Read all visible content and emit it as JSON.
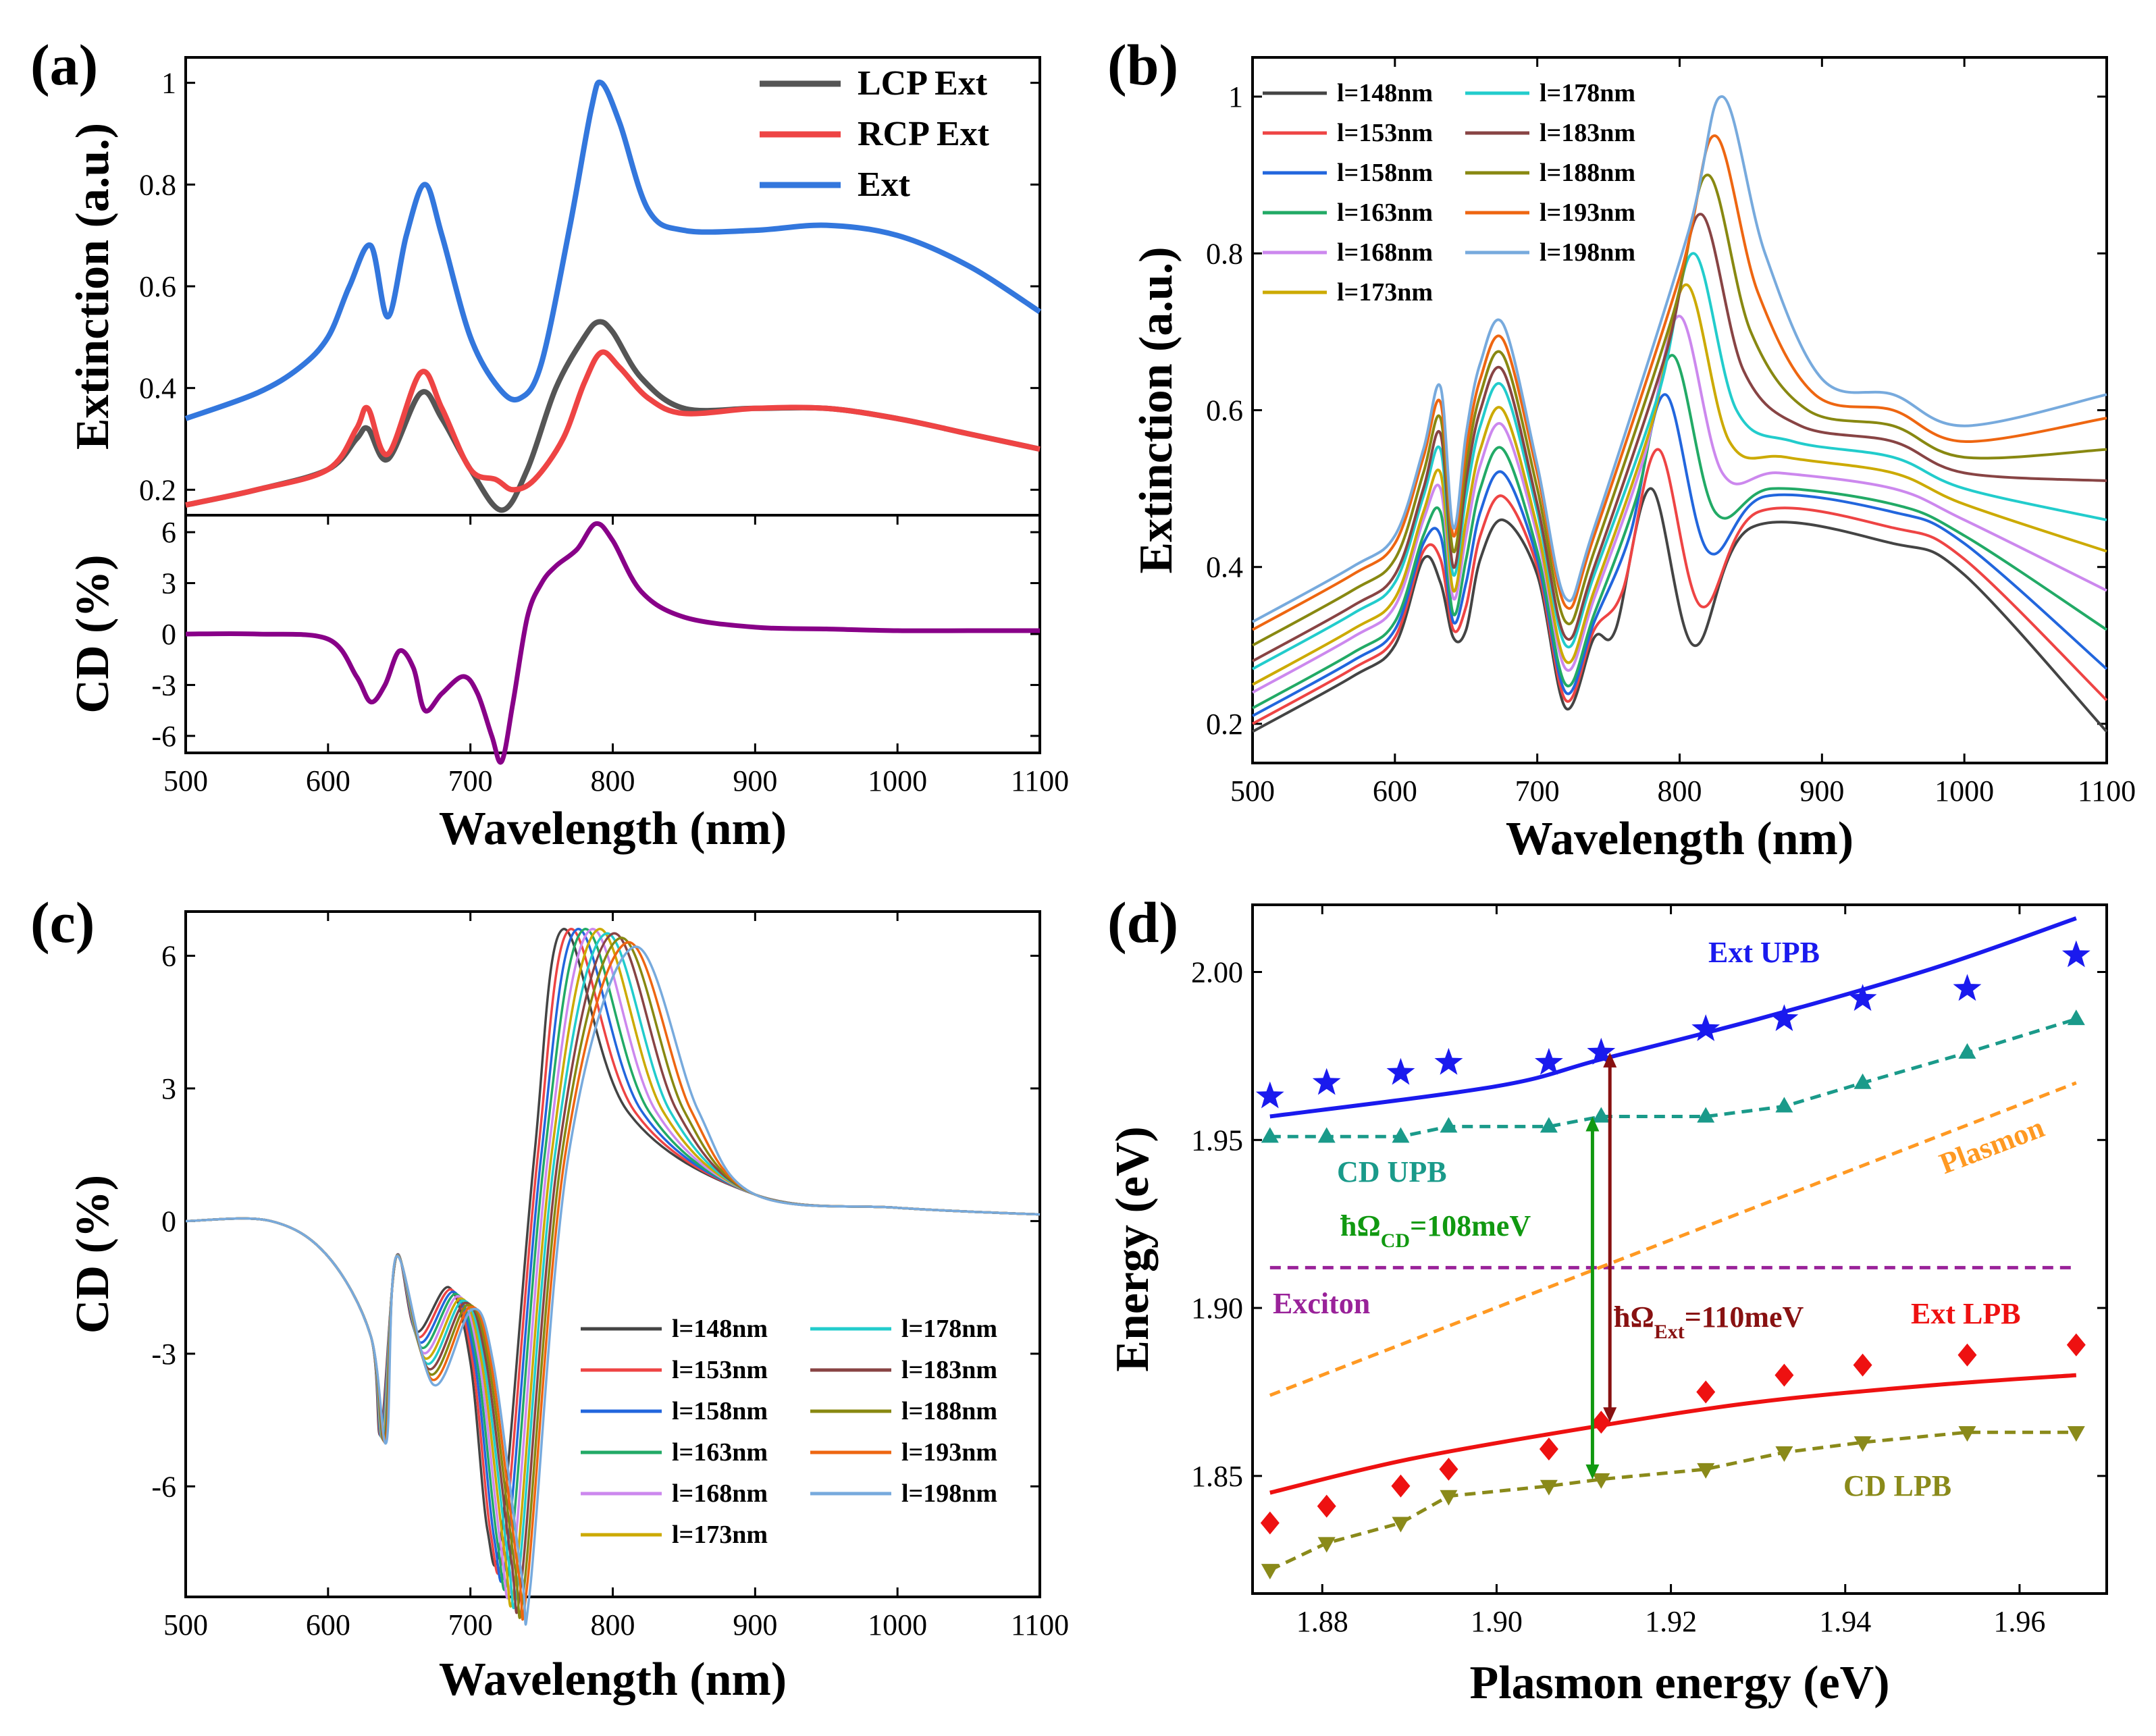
{
  "chart_data": [
    {
      "panel": "(a)",
      "type": "line",
      "xlabel": "Wavelength (nm)",
      "xlim": [
        500,
        1100
      ],
      "xticks": [
        500,
        600,
        700,
        800,
        900,
        1000,
        1100
      ],
      "top": {
        "ylabel": "Extinction (a.u.)",
        "ylim": [
          0.15,
          1.05
        ],
        "yticks": [
          0.2,
          0.4,
          0.6,
          0.8,
          1.0
        ],
        "legend_position": "top-right",
        "series": [
          {
            "name": "LCP Ext",
            "color": "#555555",
            "x": [
              500,
              550,
              600,
              620,
              628,
              642,
              665,
              680,
              700,
              722,
              740,
              760,
              780,
              790,
              800,
              820,
              850,
              900,
              950,
              1000,
              1050,
              1100
            ],
            "y": [
              0.17,
              0.2,
              0.24,
              0.3,
              0.32,
              0.26,
              0.39,
              0.34,
              0.24,
              0.16,
              0.24,
              0.4,
              0.5,
              0.53,
              0.51,
              0.42,
              0.36,
              0.36,
              0.36,
              0.34,
              0.31,
              0.28
            ]
          },
          {
            "name": "RCP Ext",
            "color": "#ee4444",
            "x": [
              500,
              550,
              600,
              620,
              628,
              642,
              665,
              680,
              700,
              718,
              730,
              745,
              765,
              780,
              792,
              805,
              825,
              850,
              900,
              950,
              1000,
              1050,
              1100
            ],
            "y": [
              0.17,
              0.2,
              0.24,
              0.32,
              0.36,
              0.27,
              0.43,
              0.36,
              0.24,
              0.22,
              0.2,
              0.22,
              0.3,
              0.41,
              0.47,
              0.44,
              0.38,
              0.35,
              0.36,
              0.36,
              0.34,
              0.31,
              0.28
            ]
          },
          {
            "name": "Ext",
            "color": "#3377dd",
            "x": [
              500,
              550,
              580,
              600,
              615,
              630,
              642,
              655,
              668,
              680,
              700,
              720,
              735,
              750,
              770,
              785,
              792,
              805,
              825,
              850,
              900,
              950,
              1000,
              1050,
              1100
            ],
            "y": [
              0.34,
              0.39,
              0.44,
              0.5,
              0.6,
              0.68,
              0.54,
              0.7,
              0.8,
              0.7,
              0.5,
              0.4,
              0.38,
              0.45,
              0.72,
              0.95,
              1.0,
              0.92,
              0.75,
              0.71,
              0.71,
              0.72,
              0.7,
              0.64,
              0.55
            ]
          }
        ]
      },
      "bottom": {
        "ylabel": "CD (%)",
        "ylim": [
          -7,
          7
        ],
        "yticks": [
          -6,
          -3,
          0,
          3,
          6
        ],
        "series": [
          {
            "name": "CD",
            "color": "#880088",
            "x": [
              500,
              550,
              600,
              620,
              630,
              640,
              650,
              660,
              668,
              680,
              695,
              705,
              715,
              722,
              730,
              740,
              750,
              760,
              775,
              788,
              800,
              820,
              850,
              900,
              950,
              1000,
              1050,
              1100
            ],
            "y": [
              0,
              0,
              -0.3,
              -2.5,
              -4,
              -3,
              -1,
              -2,
              -4.5,
              -3.5,
              -2.5,
              -3.5,
              -6,
              -7.5,
              -4,
              1,
              3,
              4,
              5,
              6.5,
              5.5,
              2.5,
              1,
              0.4,
              0.3,
              0.2,
              0.2,
              0.2
            ]
          }
        ]
      }
    },
    {
      "panel": "(b)",
      "type": "line",
      "xlabel": "Wavelength (nm)",
      "ylabel": "Extinction (a.u.)",
      "xlim": [
        500,
        1100
      ],
      "ylim": [
        0.15,
        1.05
      ],
      "xticks": [
        500,
        600,
        700,
        800,
        900,
        1000,
        1100
      ],
      "yticks": [
        0.2,
        0.4,
        0.6,
        0.8,
        1.0
      ],
      "legend_position": "top-left",
      "series": [
        {
          "name": "l=148nm",
          "color": "#444444",
          "peak_nm": 780,
          "peak": 0.5,
          "plateau": 0.45,
          "end": 0.19,
          "start": 0.19,
          "peak660": 0.46
        },
        {
          "name": "l=153nm",
          "color": "#ee4444",
          "peak_nm": 785,
          "peak": 0.55,
          "plateau": 0.47,
          "end": 0.23,
          "start": 0.2,
          "peak660": 0.49
        },
        {
          "name": "l=158nm",
          "color": "#2266dd",
          "peak_nm": 790,
          "peak": 0.62,
          "plateau": 0.49,
          "end": 0.27,
          "start": 0.21,
          "peak660": 0.52
        },
        {
          "name": "l=163nm",
          "color": "#22aa66",
          "peak_nm": 795,
          "peak": 0.67,
          "plateau": 0.5,
          "end": 0.32,
          "start": 0.22,
          "peak660": 0.55
        },
        {
          "name": "l=168nm",
          "color": "#cc88ee",
          "peak_nm": 800,
          "peak": 0.72,
          "plateau": 0.52,
          "end": 0.37,
          "start": 0.24,
          "peak660": 0.58
        },
        {
          "name": "l=173nm",
          "color": "#ccaa00",
          "peak_nm": 805,
          "peak": 0.76,
          "plateau": 0.54,
          "end": 0.42,
          "start": 0.25,
          "peak660": 0.6
        },
        {
          "name": "l=178nm",
          "color": "#22cccc",
          "peak_nm": 810,
          "peak": 0.8,
          "plateau": 0.56,
          "end": 0.46,
          "start": 0.27,
          "peak660": 0.63
        },
        {
          "name": "l=183nm",
          "color": "#884444",
          "peak_nm": 815,
          "peak": 0.85,
          "plateau": 0.58,
          "end": 0.51,
          "start": 0.28,
          "peak660": 0.65
        },
        {
          "name": "l=188nm",
          "color": "#888811",
          "peak_nm": 820,
          "peak": 0.9,
          "plateau": 0.6,
          "end": 0.55,
          "start": 0.3,
          "peak660": 0.67
        },
        {
          "name": "l=193nm",
          "color": "#ee6611",
          "peak_nm": 825,
          "peak": 0.95,
          "plateau": 0.62,
          "end": 0.59,
          "start": 0.32,
          "peak660": 0.69
        },
        {
          "name": "l=198nm",
          "color": "#77aadd",
          "peak_nm": 830,
          "peak": 1.0,
          "plateau": 0.64,
          "end": 0.62,
          "start": 0.33,
          "peak660": 0.71
        }
      ]
    },
    {
      "panel": "(c)",
      "type": "line",
      "xlabel": "Wavelength (nm)",
      "ylabel": "CD (%)",
      "xlim": [
        500,
        1100
      ],
      "ylim": [
        -8.5,
        7
      ],
      "xticks": [
        500,
        600,
        700,
        800,
        900,
        1000,
        1100
      ],
      "yticks": [
        -6,
        -3,
        0,
        3,
        6
      ],
      "legend_position": "bottom-right",
      "series": [
        {
          "name": "l=148nm",
          "color": "#444444",
          "peak_nm": 765,
          "peak": 6.6,
          "trough": -7.0
        },
        {
          "name": "l=153nm",
          "color": "#ee4444",
          "peak_nm": 770,
          "peak": 6.6,
          "trough": -7.2
        },
        {
          "name": "l=158nm",
          "color": "#2266dd",
          "peak_nm": 775,
          "peak": 6.6,
          "trough": -7.4
        },
        {
          "name": "l=163nm",
          "color": "#22aa66",
          "peak_nm": 780,
          "peak": 6.6,
          "trough": -7.6
        },
        {
          "name": "l=168nm",
          "color": "#cc88ee",
          "peak_nm": 785,
          "peak": 6.6,
          "trough": -7.8
        },
        {
          "name": "l=173nm",
          "color": "#ccaa00",
          "peak_nm": 790,
          "peak": 6.6,
          "trough": -8.0
        },
        {
          "name": "l=178nm",
          "color": "#22cccc",
          "peak_nm": 795,
          "peak": 6.5,
          "trough": -8.0
        },
        {
          "name": "l=183nm",
          "color": "#884444",
          "peak_nm": 800,
          "peak": 6.5,
          "trough": -8.1
        },
        {
          "name": "l=188nm",
          "color": "#888811",
          "peak_nm": 805,
          "peak": 6.4,
          "trough": -8.2
        },
        {
          "name": "l=193nm",
          "color": "#ee6611",
          "peak_nm": 810,
          "peak": 6.3,
          "trough": -8.2
        },
        {
          "name": "l=198nm",
          "color": "#77aadd",
          "peak_nm": 815,
          "peak": 6.2,
          "trough": -8.3
        }
      ]
    },
    {
      "panel": "(d)",
      "type": "scatter",
      "xlabel": "Plasmon energy (eV)",
      "ylabel": "Energy (eV)",
      "xlim": [
        1.872,
        1.97
      ],
      "ylim": [
        1.815,
        2.02
      ],
      "xticks": [
        1.88,
        1.9,
        1.92,
        1.94,
        1.96
      ],
      "yticks": [
        1.85,
        1.9,
        1.95,
        2.0
      ],
      "xtick_labels": [
        "1.88",
        "1.90",
        "1.92",
        "1.94",
        "1.96"
      ],
      "ytick_labels": [
        "1.85",
        "1.90",
        "1.95",
        "2.00"
      ],
      "plasmon_x": [
        1.874,
        1.8805,
        1.889,
        1.8945,
        1.906,
        1.912,
        1.924,
        1.933,
        1.942,
        1.954,
        1.9665
      ],
      "series": [
        {
          "name": "Ext UPB",
          "color": "#1a1aee",
          "marker": "star",
          "y": [
            1.963,
            1.967,
            1.97,
            1.973,
            1.973,
            1.976,
            1.983,
            1.986,
            1.992,
            1.995,
            2.005
          ]
        },
        {
          "name": "CD UPB",
          "color": "#1a9a8a",
          "marker": "triangle-up",
          "dashed": true,
          "y": [
            1.951,
            1.951,
            1.951,
            1.954,
            1.954,
            1.957,
            1.957,
            1.96,
            1.967,
            1.976,
            1.986
          ]
        },
        {
          "name": "Ext LPB",
          "color": "#ee1111",
          "marker": "diamond",
          "y": [
            1.836,
            1.841,
            1.847,
            1.852,
            1.858,
            1.866,
            1.875,
            1.88,
            1.883,
            1.886,
            1.889
          ]
        },
        {
          "name": "CD LPB",
          "color": "#8a8a1a",
          "marker": "triangle-down",
          "dashed": true,
          "y": [
            1.822,
            1.83,
            1.836,
            1.844,
            1.847,
            1.849,
            1.852,
            1.857,
            1.86,
            1.863,
            1.863
          ]
        }
      ],
      "fits": {
        "upb": {
          "color": "#1a1aee",
          "x": [
            1.874,
            1.9,
            1.912,
            1.93,
            1.95,
            1.9665
          ],
          "y": [
            1.957,
            1.966,
            1.974,
            1.986,
            2.001,
            2.016
          ]
        },
        "lpb": {
          "color": "#ee1111",
          "x": [
            1.874,
            1.89,
            1.912,
            1.93,
            1.95,
            1.9665
          ],
          "y": [
            1.845,
            1.855,
            1.865,
            1.872,
            1.877,
            1.88
          ]
        }
      },
      "plasmon_line": {
        "label": "Plasmon",
        "color": "#ff9922",
        "x": [
          1.874,
          1.9665
        ],
        "y": [
          1.874,
          1.967
        ]
      },
      "exciton_line": {
        "label": "Exciton",
        "color": "#992299",
        "y": 1.912
      },
      "arrows": [
        {
          "label_prefix": "ħΩ",
          "label_sub": "CD",
          "label_suffix": "=108meV",
          "color": "#119911",
          "x": 1.911,
          "y1": 1.849,
          "y2": 1.957
        },
        {
          "label_prefix": "ħΩ",
          "label_sub": "Ext",
          "label_suffix": "=110meV",
          "color": "#881111",
          "x": 1.913,
          "y1": 1.866,
          "y2": 1.976
        }
      ]
    }
  ]
}
